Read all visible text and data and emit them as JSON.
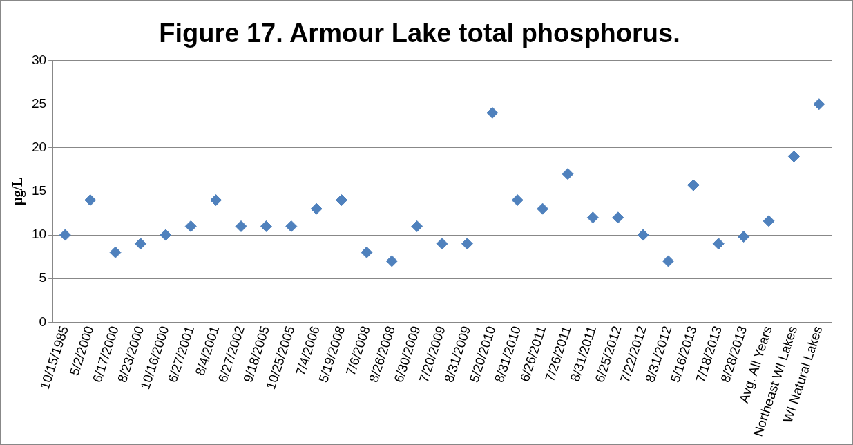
{
  "chart_data": {
    "type": "scatter",
    "title": "Figure 17. Armour Lake total phosphorus.",
    "ylabel": "µg/L",
    "categories": [
      "10/15/1985",
      "5/2/2000",
      "6/17/2000",
      "8/23/2000",
      "10/16/2000",
      "6/27/2001",
      "8/4/2001",
      "6/27/2002",
      "9/18/2005",
      "10/25/2005",
      "7/4/2006",
      "5/19/2008",
      "7/6/2008",
      "8/26/2008",
      "6/30/2009",
      "7/20/2009",
      "8/31/2009",
      "5/20/2010",
      "8/31/2010",
      "6/26/2011",
      "7/26/2011",
      "8/31/2011",
      "6/25/2012",
      "7/22/2012",
      "8/31/2012",
      "5/16/2013",
      "7/18/2013",
      "8/28/2013",
      "Avg. All Years",
      "Northeast WI Lakes",
      "WI Natural Lakes"
    ],
    "series": [
      {
        "color": "#4f81bd",
        "values": [
          10,
          14,
          8,
          9,
          10,
          11,
          14,
          11,
          11,
          11,
          13,
          14,
          8,
          7,
          11,
          9,
          9,
          24,
          14,
          13,
          17,
          12,
          12,
          10,
          7,
          15.7,
          9,
          9.8,
          11.6,
          19,
          25
        ]
      }
    ],
    "ylim": [
      0,
      30
    ],
    "yticks": [
      0,
      5,
      10,
      15,
      20,
      25,
      30
    ],
    "grid": "y",
    "legend": false,
    "marker": "diamond"
  }
}
